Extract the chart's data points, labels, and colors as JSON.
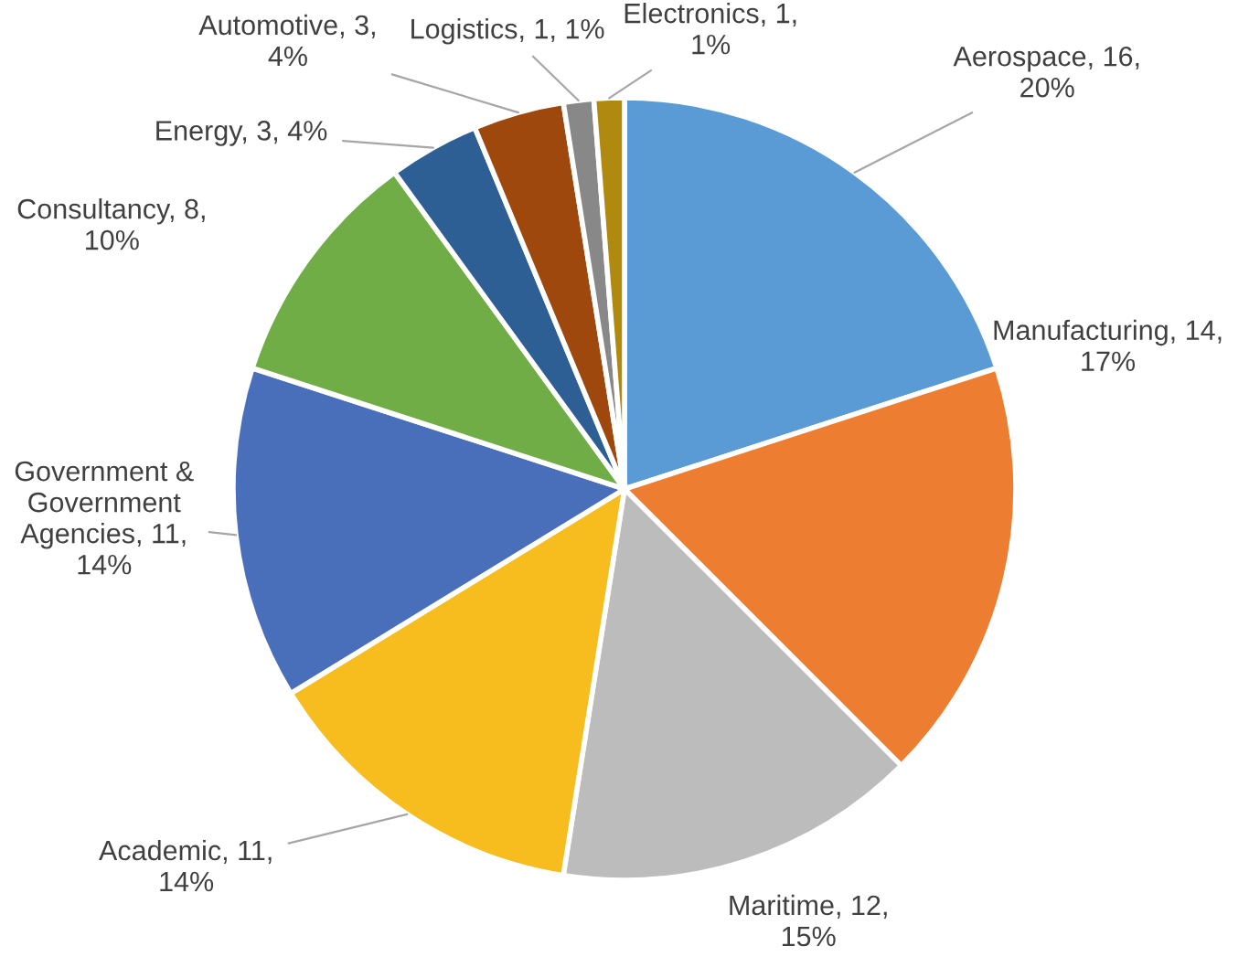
{
  "chart_data": {
    "type": "pie",
    "categories": [
      "Aerospace",
      "Manufacturing",
      "Maritime",
      "Academic",
      "Government & Government Agencies",
      "Consultancy",
      "Energy",
      "Automotive",
      "Logistics",
      "Electronics"
    ],
    "values": [
      16,
      14,
      12,
      11,
      11,
      8,
      3,
      3,
      1,
      1
    ],
    "value_labels": [
      "16, 20%",
      "14, 17%",
      "12, 15%",
      "11, 14%",
      "11, 14%",
      "8, 10%",
      "3, 4%",
      "3, 4%",
      "1, 1%",
      "1, 1%"
    ],
    "colors": [
      "#5b9bd5",
      "#ed7d31",
      "#bcbcbc",
      "#f7bc1e",
      "#4a6fba",
      "#70ad47",
      "#2e5f94",
      "#9e480e",
      "#888888",
      "#b08a0f"
    ],
    "legend": false
  }
}
